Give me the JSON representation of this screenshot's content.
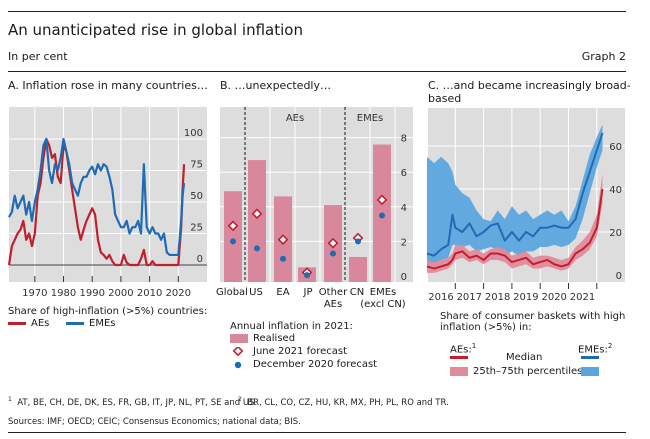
{
  "header": {
    "title": "An unanticipated rise in global inflation",
    "subtitle": "In per cent",
    "graph_number": "Graph 2"
  },
  "colors": {
    "ae": "#c0202e",
    "eme": "#1f6bb4",
    "ae_band": "#e08a9a",
    "eme_band": "#5aa5de",
    "bar": "#d9879c",
    "plot_bg": "#dddddd",
    "grid": "#ffffff"
  },
  "panels": {
    "a": {
      "title": "A. Inflation rose in many countries…",
      "legend_title": "Share of high-inflation (>5%) countries:",
      "legend": [
        "AEs",
        "EMEs"
      ]
    },
    "b": {
      "title": "B. …unexpectedly…",
      "group_labels": [
        "AEs",
        "EMEs"
      ],
      "legend_title": "Annual inflation in 2021:",
      "legend": [
        "Realised",
        "June 2021 forecast",
        "December 2020 forecast"
      ]
    },
    "c": {
      "title_line1": "C. …and became increasingly broad-",
      "title_line2": "based",
      "legend_title_line1": "Share of consumer baskets with high",
      "legend_title_line2": "inflation (>5%) in:",
      "legend_ae_head": "AEs:",
      "legend_ae_sup": "1",
      "legend_eme_head": "EMEs:",
      "legend_eme_sup": "2",
      "legend_median": "Median",
      "legend_band": "25th–75th percentiles"
    }
  },
  "footnotes": {
    "fn1_num": "1",
    "fn1": "AT, BE, CH, DE, DK, ES, FR, GB, IT, JP, NL, PT, SE and US.",
    "fn2_num": "2",
    "fn2": "BR, CL, CO, CZ, HU, KR, MX, PH, PL, RO and TR.",
    "sources": "Sources: IMF; OECD; CEIC; Consensus Economics; national data; BIS."
  },
  "chart_data": [
    {
      "type": "line",
      "title": "A. Inflation rose in many countries…",
      "xlabel": "",
      "ylabel": "Share of high-inflation (>5%) countries (%)",
      "xlim": [
        1961,
        2030
      ],
      "ylim": [
        -10,
        118
      ],
      "xticks": [
        1970,
        1980,
        1990,
        2000,
        2010,
        2020
      ],
      "yticks": [
        0,
        25,
        50,
        75,
        100
      ],
      "grid": true,
      "legend_position": "bottom",
      "series": [
        {
          "name": "AEs",
          "x": [
            1961,
            1962,
            1963,
            1964,
            1965,
            1966,
            1967,
            1968,
            1969,
            1970,
            1971,
            1972,
            1973,
            1974,
            1975,
            1976,
            1977,
            1978,
            1979,
            1980,
            1981,
            1982,
            1983,
            1984,
            1985,
            1986,
            1987,
            1988,
            1989,
            1990,
            1991,
            1992,
            1993,
            1994,
            1995,
            1996,
            1997,
            1998,
            1999,
            2000,
            2001,
            2002,
            2003,
            2004,
            2005,
            2006,
            2007,
            2008,
            2009,
            2010,
            2011,
            2012,
            2013,
            2014,
            2015,
            2016,
            2017,
            2018,
            2019,
            2020,
            2021,
            2021.5,
            2022
          ],
          "y": [
            0,
            15,
            20,
            25,
            28,
            35,
            20,
            25,
            15,
            25,
            55,
            65,
            85,
            100,
            95,
            85,
            88,
            70,
            65,
            95,
            90,
            75,
            60,
            45,
            30,
            20,
            28,
            35,
            40,
            45,
            40,
            20,
            10,
            8,
            5,
            8,
            3,
            0,
            0,
            0,
            8,
            2,
            0,
            0,
            0,
            0,
            5,
            12,
            0,
            0,
            3,
            0,
            0,
            0,
            0,
            0,
            0,
            0,
            0,
            0,
            30,
            60,
            80
          ]
        },
        {
          "name": "EMEs",
          "x": [
            1961,
            1962,
            1963,
            1964,
            1965,
            1966,
            1967,
            1968,
            1969,
            1970,
            1971,
            1972,
            1973,
            1974,
            1975,
            1976,
            1977,
            1978,
            1979,
            1980,
            1981,
            1982,
            1983,
            1984,
            1985,
            1986,
            1987,
            1988,
            1989,
            1990,
            1991,
            1992,
            1993,
            1994,
            1995,
            1996,
            1997,
            1998,
            1999,
            2000,
            2001,
            2002,
            2003,
            2004,
            2005,
            2006,
            2007,
            2008,
            2009,
            2010,
            2011,
            2012,
            2013,
            2014,
            2015,
            2016,
            2017,
            2018,
            2019,
            2020,
            2021,
            2021.5,
            2022
          ],
          "y": [
            38,
            42,
            55,
            45,
            50,
            55,
            40,
            50,
            35,
            50,
            60,
            75,
            95,
            100,
            75,
            65,
            80,
            75,
            85,
            100,
            90,
            80,
            65,
            60,
            55,
            65,
            70,
            70,
            75,
            78,
            72,
            80,
            75,
            80,
            78,
            70,
            60,
            40,
            35,
            30,
            30,
            35,
            25,
            30,
            30,
            35,
            25,
            80,
            30,
            25,
            30,
            25,
            25,
            20,
            25,
            10,
            8,
            8,
            8,
            8,
            35,
            55,
            65
          ]
        }
      ]
    },
    {
      "type": "bar",
      "title": "B. …unexpectedly…",
      "xlabel": "",
      "ylabel": "Annual inflation in 2021 (%)",
      "ylim": [
        -0.35,
        9.9
      ],
      "yticks": [
        0,
        2,
        4,
        6,
        8
      ],
      "grid": true,
      "categories": [
        "Global",
        "US",
        "EA",
        "JP",
        "Other AEs",
        "CN",
        "EMEs (excl CN)"
      ],
      "category_groups": [
        {
          "label": "",
          "members": [
            "Global"
          ]
        },
        {
          "label": "AEs",
          "members": [
            "US",
            "EA",
            "JP",
            "Other AEs"
          ]
        },
        {
          "label": "EMEs",
          "members": [
            "CN",
            "EMEs (excl CN)"
          ]
        }
      ],
      "series": [
        {
          "name": "Realised",
          "kind": "bar",
          "values": [
            4.9,
            6.7,
            4.6,
            0.5,
            4.1,
            1.1,
            7.6
          ]
        },
        {
          "name": "June 2021 forecast",
          "kind": "diamond",
          "values": [
            2.9,
            3.6,
            2.1,
            0.2,
            1.9,
            2.2,
            4.4
          ]
        },
        {
          "name": "December 2020 forecast",
          "kind": "dot",
          "values": [
            2.0,
            1.6,
            1.0,
            0.05,
            1.3,
            2.0,
            3.5
          ]
        }
      ],
      "legend_position": "bottom"
    },
    {
      "type": "area",
      "title": "C. …and became increasingly broad-based",
      "xlabel": "",
      "ylabel": "Share of consumer baskets with high inflation (>5%) (%)",
      "xlim": [
        2016.0,
        2022.3
      ],
      "ylim": [
        -3,
        78
      ],
      "xticks": [
        2016,
        2017,
        2018,
        2019,
        2020,
        2021
      ],
      "yticks": [
        0,
        20,
        40,
        60
      ],
      "grid": true,
      "legend_position": "bottom",
      "x": [
        2016.0,
        2016.25,
        2016.5,
        2016.75,
        2016.9,
        2017.0,
        2017.25,
        2017.5,
        2017.75,
        2018.0,
        2018.25,
        2018.5,
        2018.75,
        2019.0,
        2019.25,
        2019.5,
        2019.75,
        2020.0,
        2020.25,
        2020.5,
        2020.75,
        2021.0,
        2021.25,
        2021.5,
        2021.75,
        2022.0,
        2022.2
      ],
      "series": [
        {
          "name": "AEs median",
          "group": "AEs",
          "median": [
            4,
            3,
            4,
            5,
            7,
            10,
            11,
            8,
            9,
            7,
            10,
            10,
            9,
            6,
            7,
            8,
            5,
            6,
            7,
            5,
            4,
            5,
            10,
            12,
            15,
            22,
            40
          ]
        },
        {
          "name": "AEs 25th percentile",
          "group": "AEs",
          "values": [
            1,
            1,
            2,
            3,
            5,
            7,
            8,
            6,
            7,
            5,
            7,
            7,
            6,
            3,
            4,
            5,
            3,
            3,
            4,
            3,
            2,
            3,
            7,
            9,
            12,
            18,
            33
          ]
        },
        {
          "name": "AEs 75th percentile",
          "group": "AEs",
          "values": [
            7,
            6,
            7,
            8,
            10,
            14,
            14,
            11,
            12,
            10,
            12,
            13,
            12,
            9,
            10,
            11,
            8,
            9,
            9,
            8,
            7,
            8,
            13,
            16,
            20,
            28,
            47
          ]
        },
        {
          "name": "EMEs median",
          "group": "EMEs",
          "median": [
            10,
            9,
            12,
            14,
            28,
            22,
            20,
            24,
            18,
            20,
            23,
            24,
            16,
            20,
            16,
            20,
            18,
            22,
            22,
            23,
            22,
            22,
            26,
            38,
            48,
            58,
            66
          ]
        },
        {
          "name": "EMEs 25th percentile",
          "group": "EMEs",
          "values": [
            6,
            5,
            7,
            8,
            14,
            14,
            13,
            14,
            11,
            12,
            13,
            12,
            9,
            11,
            9,
            11,
            11,
            13,
            13,
            14,
            13,
            14,
            17,
            26,
            38,
            50,
            58
          ]
        },
        {
          "name": "EMEs 75th percentile",
          "group": "EMEs",
          "values": [
            55,
            52,
            55,
            52,
            48,
            42,
            38,
            36,
            30,
            26,
            25,
            30,
            26,
            32,
            28,
            30,
            26,
            28,
            30,
            28,
            30,
            25,
            32,
            44,
            56,
            64,
            70
          ]
        }
      ]
    }
  ]
}
